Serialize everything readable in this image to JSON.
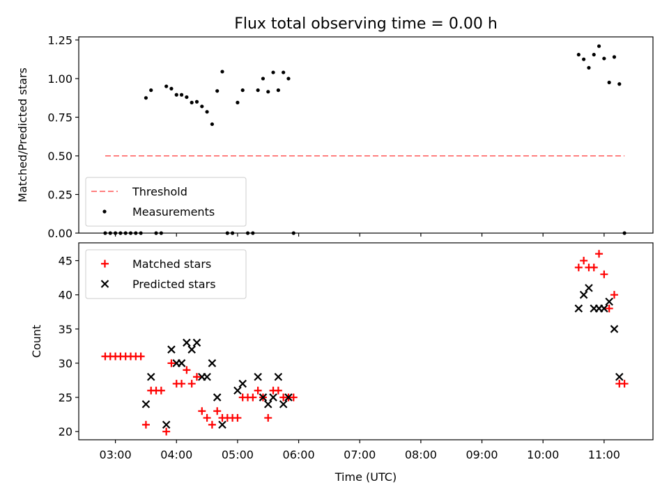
{
  "title": "Flux total observing time = 0.00 h",
  "colors": {
    "threshold": "#ff7f7f",
    "measurements": "#000000",
    "matched": "#ff0000",
    "predicted": "#000000"
  },
  "chart_data": [
    {
      "type": "scatter",
      "panel": "top",
      "ylabel": "Matched/Predicted stars",
      "ylim": [
        0,
        1.27
      ],
      "yticks": [
        0,
        0.25,
        0.5,
        0.75,
        1.0,
        1.25
      ],
      "ytick_labels": [
        "0.00",
        "0.25",
        "0.50",
        "0.75",
        "1.00",
        "1.25"
      ],
      "xlim": [
        "02:24",
        "11:48"
      ],
      "legend": {
        "placement": "lower-left",
        "entries": [
          "Threshold",
          "Measurements"
        ]
      },
      "threshold": {
        "name": "Threshold",
        "value": 0.5,
        "x_start": "02:50",
        "x_end": "11:20"
      },
      "series": [
        {
          "name": "Measurements",
          "x": [
            "02:50",
            "02:55",
            "03:00",
            "03:05",
            "03:10",
            "03:15",
            "03:20",
            "03:25",
            "03:30",
            "03:35",
            "03:40",
            "03:45",
            "03:50",
            "03:55",
            "04:00",
            "04:05",
            "04:10",
            "04:15",
            "04:20",
            "04:25",
            "04:30",
            "04:35",
            "04:40",
            "04:45",
            "04:50",
            "04:55",
            "05:00",
            "05:05",
            "05:10",
            "05:15",
            "05:20",
            "05:25",
            "05:30",
            "05:35",
            "05:40",
            "05:45",
            "05:50",
            "05:55",
            "10:35",
            "10:40",
            "10:45",
            "10:50",
            "10:55",
            "11:00",
            "11:05",
            "11:10",
            "11:15",
            "11:20"
          ],
          "y": [
            0,
            0,
            0,
            0,
            0,
            0,
            0,
            0,
            0.875,
            0.925,
            0,
            0,
            0.95,
            0.935,
            0.895,
            0.895,
            0.88,
            0.845,
            0.85,
            0.82,
            0.785,
            0.705,
            0.92,
            1.045,
            0,
            0,
            0.845,
            0.925,
            0,
            0,
            0.925,
            1.0,
            0.915,
            1.04,
            0.925,
            1.04,
            1.0,
            0,
            1.155,
            1.125,
            1.07,
            1.155,
            1.21,
            1.13,
            0.975,
            1.14,
            0.965,
            0
          ]
        }
      ]
    },
    {
      "type": "scatter",
      "panel": "bottom",
      "xlabel": "Time (UTC)",
      "ylabel": "Count",
      "ylim": [
        18.8,
        47.6
      ],
      "yticks": [
        20,
        25,
        30,
        35,
        40,
        45
      ],
      "ytick_labels": [
        "20",
        "25",
        "30",
        "35",
        "40",
        "45"
      ],
      "xlim": [
        "02:24",
        "11:48"
      ],
      "xticks": [
        "03:00",
        "04:00",
        "05:00",
        "06:00",
        "07:00",
        "08:00",
        "09:00",
        "10:00",
        "11:00"
      ],
      "legend": {
        "placement": "upper-left",
        "entries": [
          "Matched stars",
          "Predicted stars"
        ]
      },
      "series": [
        {
          "name": "Matched stars",
          "x": [
            "02:50",
            "02:55",
            "03:00",
            "03:05",
            "03:10",
            "03:15",
            "03:20",
            "03:25",
            "03:30",
            "03:35",
            "03:40",
            "03:45",
            "03:50",
            "03:55",
            "04:00",
            "04:05",
            "04:10",
            "04:15",
            "04:20",
            "04:25",
            "04:30",
            "04:35",
            "04:40",
            "04:45",
            "04:50",
            "04:55",
            "05:00",
            "05:05",
            "05:10",
            "05:15",
            "05:20",
            "05:25",
            "05:30",
            "05:35",
            "05:40",
            "05:45",
            "05:50",
            "05:55",
            "10:35",
            "10:40",
            "10:45",
            "10:50",
            "10:55",
            "11:00",
            "11:05",
            "11:10",
            "11:15",
            "11:20"
          ],
          "y": [
            31,
            31,
            31,
            31,
            31,
            31,
            31,
            31,
            21,
            26,
            26,
            26,
            20,
            30,
            27,
            27,
            29,
            27,
            28,
            23,
            22,
            21,
            23,
            22,
            22,
            22,
            22,
            25,
            25,
            25,
            26,
            25,
            22,
            26,
            26,
            25,
            25,
            25,
            44,
            45,
            44,
            44,
            46,
            43,
            38,
            40,
            27,
            27
          ]
        },
        {
          "name": "Predicted stars",
          "x": [
            "03:30",
            "03:35",
            "03:50",
            "03:55",
            "04:00",
            "04:05",
            "04:10",
            "04:15",
            "04:20",
            "04:25",
            "04:30",
            "04:35",
            "04:40",
            "04:45",
            "05:00",
            "05:05",
            "05:20",
            "05:25",
            "05:30",
            "05:35",
            "05:40",
            "05:45",
            "05:50",
            "10:35",
            "10:40",
            "10:45",
            "10:50",
            "10:55",
            "11:00",
            "11:05",
            "11:10",
            "11:15"
          ],
          "y": [
            24,
            28,
            21,
            32,
            30,
            30,
            33,
            32,
            33,
            28,
            28,
            30,
            25,
            21,
            26,
            27,
            28,
            25,
            24,
            25,
            28,
            24,
            25,
            38,
            40,
            41,
            38,
            38,
            38,
            39,
            35,
            28
          ]
        }
      ]
    }
  ]
}
